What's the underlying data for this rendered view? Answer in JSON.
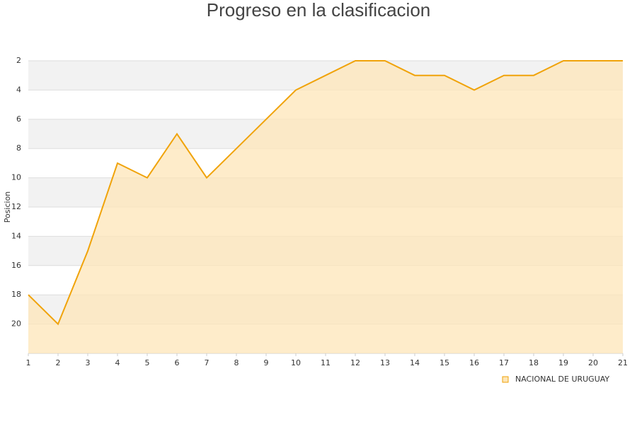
{
  "chart_data": {
    "type": "area",
    "title": "Progreso en la clasificacion",
    "y_label": "Posicion",
    "x": [
      1,
      2,
      3,
      4,
      5,
      6,
      7,
      8,
      9,
      10,
      11,
      12,
      13,
      14,
      15,
      16,
      17,
      18,
      19,
      20,
      21
    ],
    "series": [
      {
        "name": "NACIONAL DE URUGUAY",
        "color": "#f0a30a",
        "fill": "#fde6b8",
        "values": [
          18,
          20,
          15,
          9,
          10,
          7,
          10,
          8,
          6,
          4,
          3,
          2,
          2,
          3,
          3,
          4,
          3,
          3,
          2,
          2,
          2
        ]
      }
    ],
    "xlim": [
      1,
      21
    ],
    "xticks": [
      1,
      2,
      3,
      4,
      5,
      6,
      7,
      8,
      9,
      10,
      11,
      12,
      13,
      14,
      15,
      16,
      17,
      18,
      19,
      20,
      21
    ],
    "ylim": [
      22,
      2
    ],
    "yticks": [
      2,
      4,
      6,
      8,
      10,
      12,
      14,
      16,
      18,
      20
    ],
    "grid": true,
    "legend": "bottom-right"
  }
}
